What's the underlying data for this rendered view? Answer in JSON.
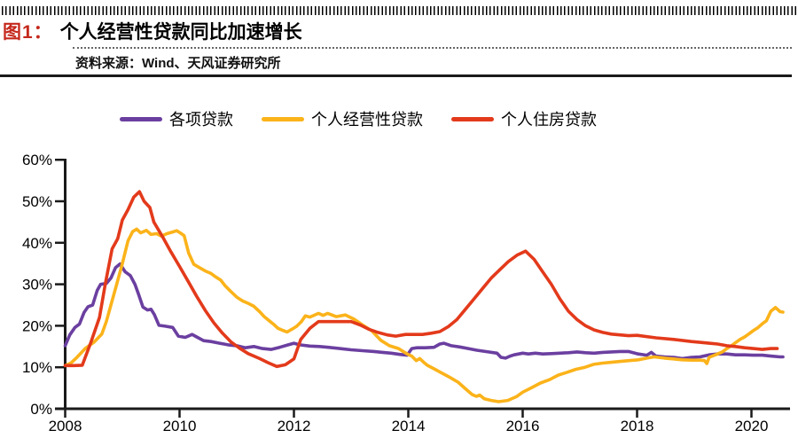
{
  "header": {
    "figure_label": "图1：",
    "title": "个人经营性贷款同比加速增长",
    "source": "资料来源：Wind、天风证券研究所"
  },
  "colors": {
    "figure_label_red": "#c5281c",
    "axis": "#1a1a1a",
    "series_purple": "#6b3fa0",
    "series_yellow": "#fbb31a",
    "series_red": "#e33a1b"
  },
  "chart_data": {
    "type": "line",
    "title": "个人经营性贷款同比加速增长",
    "xlabel": "",
    "ylabel": "",
    "xlim": [
      2008,
      2020.72
    ],
    "ylim": [
      0,
      60
    ],
    "x_ticks": [
      2008,
      2010,
      2012,
      2014,
      2016,
      2018,
      2020
    ],
    "y_ticks": [
      0,
      10,
      20,
      30,
      40,
      50,
      60
    ],
    "y_tick_suffix": "%",
    "grid": false,
    "legend_position": "top",
    "series": [
      {
        "name": "各项贷款",
        "color": "#6b3fa0",
        "points": [
          [
            2008.0,
            15.2
          ],
          [
            2008.08,
            17.8
          ],
          [
            2008.17,
            19.6
          ],
          [
            2008.25,
            20.4
          ],
          [
            2008.33,
            23.2
          ],
          [
            2008.4,
            24.6
          ],
          [
            2008.48,
            25.0
          ],
          [
            2008.56,
            28.5
          ],
          [
            2008.62,
            30.0
          ],
          [
            2008.72,
            30.2
          ],
          [
            2008.8,
            31.5
          ],
          [
            2008.88,
            34.0
          ],
          [
            2008.96,
            34.9
          ],
          [
            2009.05,
            33.0
          ],
          [
            2009.14,
            32.1
          ],
          [
            2009.22,
            30.0
          ],
          [
            2009.28,
            27.7
          ],
          [
            2009.36,
            24.5
          ],
          [
            2009.44,
            23.8
          ],
          [
            2009.5,
            24.0
          ],
          [
            2009.56,
            22.7
          ],
          [
            2009.64,
            20.1
          ],
          [
            2009.75,
            19.9
          ],
          [
            2009.88,
            19.6
          ],
          [
            2009.98,
            17.5
          ],
          [
            2010.1,
            17.2
          ],
          [
            2010.22,
            17.9
          ],
          [
            2010.3,
            17.3
          ],
          [
            2010.42,
            16.4
          ],
          [
            2010.55,
            16.2
          ],
          [
            2010.7,
            15.8
          ],
          [
            2010.85,
            15.4
          ],
          [
            2011.0,
            15.2
          ],
          [
            2011.15,
            14.7
          ],
          [
            2011.3,
            15.0
          ],
          [
            2011.45,
            14.5
          ],
          [
            2011.6,
            14.3
          ],
          [
            2011.75,
            14.8
          ],
          [
            2011.9,
            15.4
          ],
          [
            2012.0,
            15.8
          ],
          [
            2012.1,
            15.4
          ],
          [
            2012.28,
            15.1
          ],
          [
            2012.45,
            15.0
          ],
          [
            2012.6,
            14.8
          ],
          [
            2012.8,
            14.5
          ],
          [
            2013.0,
            14.2
          ],
          [
            2013.2,
            14.0
          ],
          [
            2013.4,
            13.8
          ],
          [
            2013.55,
            13.6
          ],
          [
            2013.7,
            13.4
          ],
          [
            2013.85,
            13.1
          ],
          [
            2013.98,
            12.9
          ],
          [
            2014.06,
            14.5
          ],
          [
            2014.15,
            14.7
          ],
          [
            2014.3,
            14.7
          ],
          [
            2014.45,
            14.8
          ],
          [
            2014.55,
            15.6
          ],
          [
            2014.62,
            15.8
          ],
          [
            2014.75,
            15.2
          ],
          [
            2014.9,
            14.9
          ],
          [
            2015.05,
            14.5
          ],
          [
            2015.2,
            14.1
          ],
          [
            2015.4,
            13.7
          ],
          [
            2015.55,
            13.4
          ],
          [
            2015.62,
            12.4
          ],
          [
            2015.7,
            12.2
          ],
          [
            2015.78,
            12.7
          ],
          [
            2015.85,
            13.0
          ],
          [
            2016.0,
            13.4
          ],
          [
            2016.1,
            13.2
          ],
          [
            2016.22,
            13.4
          ],
          [
            2016.35,
            13.2
          ],
          [
            2016.5,
            13.3
          ],
          [
            2016.65,
            13.4
          ],
          [
            2016.8,
            13.5
          ],
          [
            2016.95,
            13.7
          ],
          [
            2017.1,
            13.5
          ],
          [
            2017.25,
            13.4
          ],
          [
            2017.4,
            13.6
          ],
          [
            2017.55,
            13.7
          ],
          [
            2017.7,
            13.8
          ],
          [
            2017.85,
            13.8
          ],
          [
            2018.02,
            13.2
          ],
          [
            2018.17,
            12.9
          ],
          [
            2018.25,
            13.6
          ],
          [
            2018.33,
            12.7
          ],
          [
            2018.48,
            12.5
          ],
          [
            2018.64,
            12.4
          ],
          [
            2018.79,
            12.1
          ],
          [
            2018.95,
            12.4
          ],
          [
            2019.1,
            12.5
          ],
          [
            2019.26,
            13.0
          ],
          [
            2019.41,
            13.2
          ],
          [
            2019.57,
            13.2
          ],
          [
            2019.72,
            13.0
          ],
          [
            2019.88,
            13.0
          ],
          [
            2020.03,
            12.9
          ],
          [
            2020.19,
            12.9
          ],
          [
            2020.34,
            12.7
          ],
          [
            2020.5,
            12.5
          ],
          [
            2020.55,
            12.5
          ]
        ]
      },
      {
        "name": "个人经营性贷款",
        "color": "#fbb31a",
        "points": [
          [
            2008.0,
            10.4
          ],
          [
            2008.1,
            11.0
          ],
          [
            2008.2,
            12.3
          ],
          [
            2008.35,
            14.5
          ],
          [
            2008.5,
            16.0
          ],
          [
            2008.64,
            18.0
          ],
          [
            2008.72,
            21.0
          ],
          [
            2008.8,
            25.0
          ],
          [
            2008.9,
            30.0
          ],
          [
            2009.0,
            35.0
          ],
          [
            2009.1,
            40.5
          ],
          [
            2009.18,
            42.7
          ],
          [
            2009.25,
            43.3
          ],
          [
            2009.32,
            42.4
          ],
          [
            2009.42,
            43.0
          ],
          [
            2009.5,
            42.0
          ],
          [
            2009.6,
            42.2
          ],
          [
            2009.68,
            41.6
          ],
          [
            2009.78,
            42.2
          ],
          [
            2009.88,
            42.6
          ],
          [
            2009.95,
            42.9
          ],
          [
            2010.02,
            42.3
          ],
          [
            2010.08,
            41.7
          ],
          [
            2010.16,
            37.5
          ],
          [
            2010.25,
            34.8
          ],
          [
            2010.35,
            34.0
          ],
          [
            2010.45,
            33.2
          ],
          [
            2010.55,
            32.6
          ],
          [
            2010.63,
            31.8
          ],
          [
            2010.72,
            31.0
          ],
          [
            2010.8,
            29.6
          ],
          [
            2010.9,
            28.2
          ],
          [
            2011.0,
            26.9
          ],
          [
            2011.1,
            26.0
          ],
          [
            2011.2,
            25.4
          ],
          [
            2011.3,
            24.7
          ],
          [
            2011.4,
            23.4
          ],
          [
            2011.48,
            22.2
          ],
          [
            2011.56,
            21.3
          ],
          [
            2011.65,
            20.3
          ],
          [
            2011.72,
            19.4
          ],
          [
            2011.8,
            18.9
          ],
          [
            2011.88,
            18.5
          ],
          [
            2011.97,
            19.2
          ],
          [
            2012.05,
            19.9
          ],
          [
            2012.13,
            21.0
          ],
          [
            2012.2,
            22.4
          ],
          [
            2012.28,
            22.1
          ],
          [
            2012.43,
            23.0
          ],
          [
            2012.51,
            22.5
          ],
          [
            2012.59,
            23.0
          ],
          [
            2012.74,
            22.2
          ],
          [
            2012.9,
            22.6
          ],
          [
            2013.05,
            21.6
          ],
          [
            2013.21,
            20.1
          ],
          [
            2013.36,
            18.8
          ],
          [
            2013.52,
            16.5
          ],
          [
            2013.67,
            15.2
          ],
          [
            2013.83,
            14.5
          ],
          [
            2013.98,
            13.2
          ],
          [
            2014.06,
            12.7
          ],
          [
            2014.14,
            11.6
          ],
          [
            2014.2,
            12.1
          ],
          [
            2014.27,
            11.2
          ],
          [
            2014.33,
            10.5
          ],
          [
            2014.48,
            9.4
          ],
          [
            2014.56,
            8.8
          ],
          [
            2014.71,
            7.7
          ],
          [
            2014.87,
            6.4
          ],
          [
            2015.0,
            4.8
          ],
          [
            2015.12,
            3.4
          ],
          [
            2015.19,
            3.0
          ],
          [
            2015.25,
            3.3
          ],
          [
            2015.33,
            2.4
          ],
          [
            2015.45,
            2.0
          ],
          [
            2015.58,
            1.7
          ],
          [
            2015.74,
            2.0
          ],
          [
            2015.89,
            2.9
          ],
          [
            2016.0,
            4.0
          ],
          [
            2016.16,
            5.1
          ],
          [
            2016.31,
            6.2
          ],
          [
            2016.47,
            7.0
          ],
          [
            2016.62,
            8.1
          ],
          [
            2016.78,
            8.8
          ],
          [
            2016.93,
            9.5
          ],
          [
            2017.09,
            10.0
          ],
          [
            2017.24,
            10.7
          ],
          [
            2017.4,
            11.0
          ],
          [
            2017.55,
            11.2
          ],
          [
            2017.71,
            11.4
          ],
          [
            2017.86,
            11.6
          ],
          [
            2018.02,
            11.8
          ],
          [
            2018.17,
            12.2
          ],
          [
            2018.3,
            12.5
          ],
          [
            2018.48,
            12.2
          ],
          [
            2018.64,
            12.0
          ],
          [
            2018.79,
            11.8
          ],
          [
            2018.95,
            11.7
          ],
          [
            2019.1,
            11.7
          ],
          [
            2019.18,
            11.6
          ],
          [
            2019.22,
            10.9
          ],
          [
            2019.26,
            12.4
          ],
          [
            2019.41,
            13.2
          ],
          [
            2019.49,
            13.7
          ],
          [
            2019.57,
            14.5
          ],
          [
            2019.65,
            15.2
          ],
          [
            2019.72,
            15.9
          ],
          [
            2019.8,
            16.7
          ],
          [
            2019.88,
            17.3
          ],
          [
            2019.95,
            18.0
          ],
          [
            2020.03,
            18.8
          ],
          [
            2020.11,
            19.5
          ],
          [
            2020.19,
            20.5
          ],
          [
            2020.26,
            21.2
          ],
          [
            2020.34,
            23.5
          ],
          [
            2020.42,
            24.4
          ],
          [
            2020.5,
            23.4
          ],
          [
            2020.55,
            23.3
          ]
        ]
      },
      {
        "name": "个人住房贷款",
        "color": "#e33a1b",
        "points": [
          [
            2008.0,
            10.4
          ],
          [
            2008.15,
            10.4
          ],
          [
            2008.3,
            10.5
          ],
          [
            2008.45,
            16.0
          ],
          [
            2008.6,
            22.0
          ],
          [
            2008.7,
            30.0
          ],
          [
            2008.82,
            38.5
          ],
          [
            2008.92,
            41.0
          ],
          [
            2009.0,
            45.5
          ],
          [
            2009.1,
            48.0
          ],
          [
            2009.2,
            51.0
          ],
          [
            2009.3,
            52.3
          ],
          [
            2009.38,
            50.0
          ],
          [
            2009.48,
            48.5
          ],
          [
            2009.55,
            45.0
          ],
          [
            2009.7,
            41.5
          ],
          [
            2009.85,
            37.8
          ],
          [
            2010.0,
            34.3
          ],
          [
            2010.15,
            30.7
          ],
          [
            2010.3,
            27.1
          ],
          [
            2010.45,
            23.7
          ],
          [
            2010.6,
            20.7
          ],
          [
            2010.75,
            18.2
          ],
          [
            2010.9,
            16.1
          ],
          [
            2011.05,
            14.6
          ],
          [
            2011.2,
            13.3
          ],
          [
            2011.4,
            12.1
          ],
          [
            2011.55,
            11.1
          ],
          [
            2011.7,
            10.2
          ],
          [
            2011.85,
            10.6
          ],
          [
            2012.0,
            12.0
          ],
          [
            2012.12,
            16.7
          ],
          [
            2012.28,
            19.4
          ],
          [
            2012.43,
            21.0
          ],
          [
            2012.6,
            21.0
          ],
          [
            2012.8,
            21.0
          ],
          [
            2013.0,
            21.0
          ],
          [
            2013.16,
            20.2
          ],
          [
            2013.32,
            19.1
          ],
          [
            2013.47,
            18.4
          ],
          [
            2013.63,
            17.8
          ],
          [
            2013.78,
            17.5
          ],
          [
            2013.95,
            17.9
          ],
          [
            2014.1,
            17.9
          ],
          [
            2014.25,
            17.9
          ],
          [
            2014.4,
            18.2
          ],
          [
            2014.55,
            18.6
          ],
          [
            2014.7,
            19.8
          ],
          [
            2014.85,
            21.5
          ],
          [
            2015.0,
            24.0
          ],
          [
            2015.15,
            26.5
          ],
          [
            2015.3,
            29.0
          ],
          [
            2015.45,
            31.5
          ],
          [
            2015.6,
            33.5
          ],
          [
            2015.75,
            35.5
          ],
          [
            2015.9,
            37.0
          ],
          [
            2016.05,
            38.0
          ],
          [
            2016.2,
            36.0
          ],
          [
            2016.35,
            33.0
          ],
          [
            2016.5,
            30.0
          ],
          [
            2016.65,
            26.5
          ],
          [
            2016.8,
            23.5
          ],
          [
            2016.95,
            21.5
          ],
          [
            2017.1,
            20.0
          ],
          [
            2017.25,
            19.0
          ],
          [
            2017.4,
            18.4
          ],
          [
            2017.55,
            18.0
          ],
          [
            2017.7,
            17.8
          ],
          [
            2017.85,
            17.6
          ],
          [
            2018.0,
            17.7
          ],
          [
            2018.33,
            17.1
          ],
          [
            2018.64,
            16.7
          ],
          [
            2018.95,
            16.2
          ],
          [
            2019.1,
            16.0
          ],
          [
            2019.26,
            15.8
          ],
          [
            2019.41,
            15.6
          ],
          [
            2019.57,
            15.2
          ],
          [
            2019.72,
            15.0
          ],
          [
            2019.88,
            14.7
          ],
          [
            2020.03,
            14.5
          ],
          [
            2020.19,
            14.3
          ],
          [
            2020.34,
            14.5
          ],
          [
            2020.45,
            14.5
          ]
        ]
      }
    ]
  }
}
